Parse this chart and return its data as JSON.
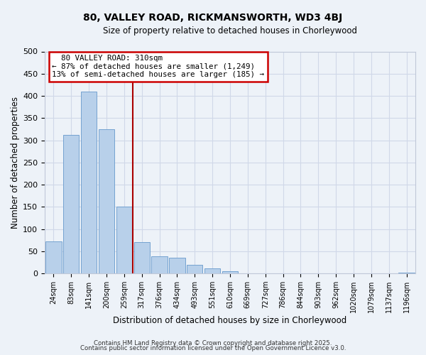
{
  "title": "80, VALLEY ROAD, RICKMANSWORTH, WD3 4BJ",
  "subtitle": "Size of property relative to detached houses in Chorleywood",
  "bar_labels": [
    "24sqm",
    "83sqm",
    "141sqm",
    "200sqm",
    "259sqm",
    "317sqm",
    "376sqm",
    "434sqm",
    "493sqm",
    "551sqm",
    "610sqm",
    "669sqm",
    "727sqm",
    "786sqm",
    "844sqm",
    "903sqm",
    "962sqm",
    "1020sqm",
    "1079sqm",
    "1137sqm",
    "1196sqm"
  ],
  "bar_values": [
    72,
    312,
    410,
    325,
    150,
    70,
    38,
    35,
    20,
    12,
    5,
    0,
    0,
    0,
    0,
    0,
    0,
    0,
    0,
    0,
    2
  ],
  "bar_color": "#b8d0ea",
  "bar_edge_color": "#6699cc",
  "vline_x_idx": 5,
  "vline_color": "#aa0000",
  "xlabel": "Distribution of detached houses by size in Chorleywood",
  "ylabel": "Number of detached properties",
  "ylim": [
    0,
    500
  ],
  "yticks": [
    0,
    50,
    100,
    150,
    200,
    250,
    300,
    350,
    400,
    450,
    500
  ],
  "annotation_title": "80 VALLEY ROAD: 310sqm",
  "annotation_line1": "← 87% of detached houses are smaller (1,249)",
  "annotation_line2": "13% of semi-detached houses are larger (185) →",
  "annotation_box_color": "#ffffff",
  "annotation_box_edge": "#cc0000",
  "grid_color": "#d0d8e8",
  "bg_color": "#edf2f8",
  "footer1": "Contains HM Land Registry data © Crown copyright and database right 2025.",
  "footer2": "Contains public sector information licensed under the Open Government Licence v3.0."
}
